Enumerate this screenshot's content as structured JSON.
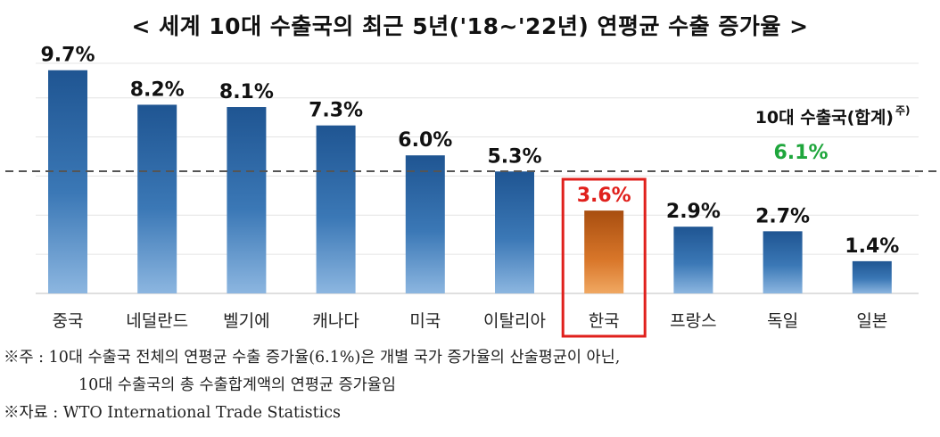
{
  "title": "< 세계 10대 수출국의 최근 5년('18~'22년) 연평균 수출 증가율 >",
  "chart_data": {
    "type": "bar",
    "categories": [
      "중국",
      "네덜란드",
      "벨기에",
      "캐나다",
      "미국",
      "이탈리아",
      "한국",
      "프랑스",
      "독일",
      "일본"
    ],
    "values": [
      9.7,
      8.2,
      8.1,
      7.3,
      6.0,
      5.3,
      3.6,
      2.9,
      2.7,
      1.4
    ],
    "data_labels": [
      "9.7%",
      "8.2%",
      "8.1%",
      "7.3%",
      "6.0%",
      "5.3%",
      "3.6%",
      "2.9%",
      "2.7%",
      "1.4%"
    ],
    "highlight_category": "한국",
    "colors": {
      "bar": "#2e6aa6",
      "highlight_bar": "#c96a1a",
      "highlight_label": "#e0201c",
      "highlight_box": "#e0201c",
      "reference_label": "#1fa63c",
      "reference_line": "#555555"
    },
    "reference_line": {
      "value": 6.1,
      "label": "10대 수출국(합계)",
      "superscript": "주)",
      "value_label": "6.1%",
      "style": "dashed"
    },
    "ylim": [
      0,
      10
    ],
    "grid": true
  },
  "notes": {
    "note1_line1": "※주 : 10대 수출국 전체의 연평균 수출 증가율(6.1%)은 개별 국가 증가율의 산술평균이 아닌,",
    "note1_line2": "10대 수출국의 총 수출합계액의 연평균 증가율임",
    "source": "※자료 : WTO International Trade Statistics"
  }
}
